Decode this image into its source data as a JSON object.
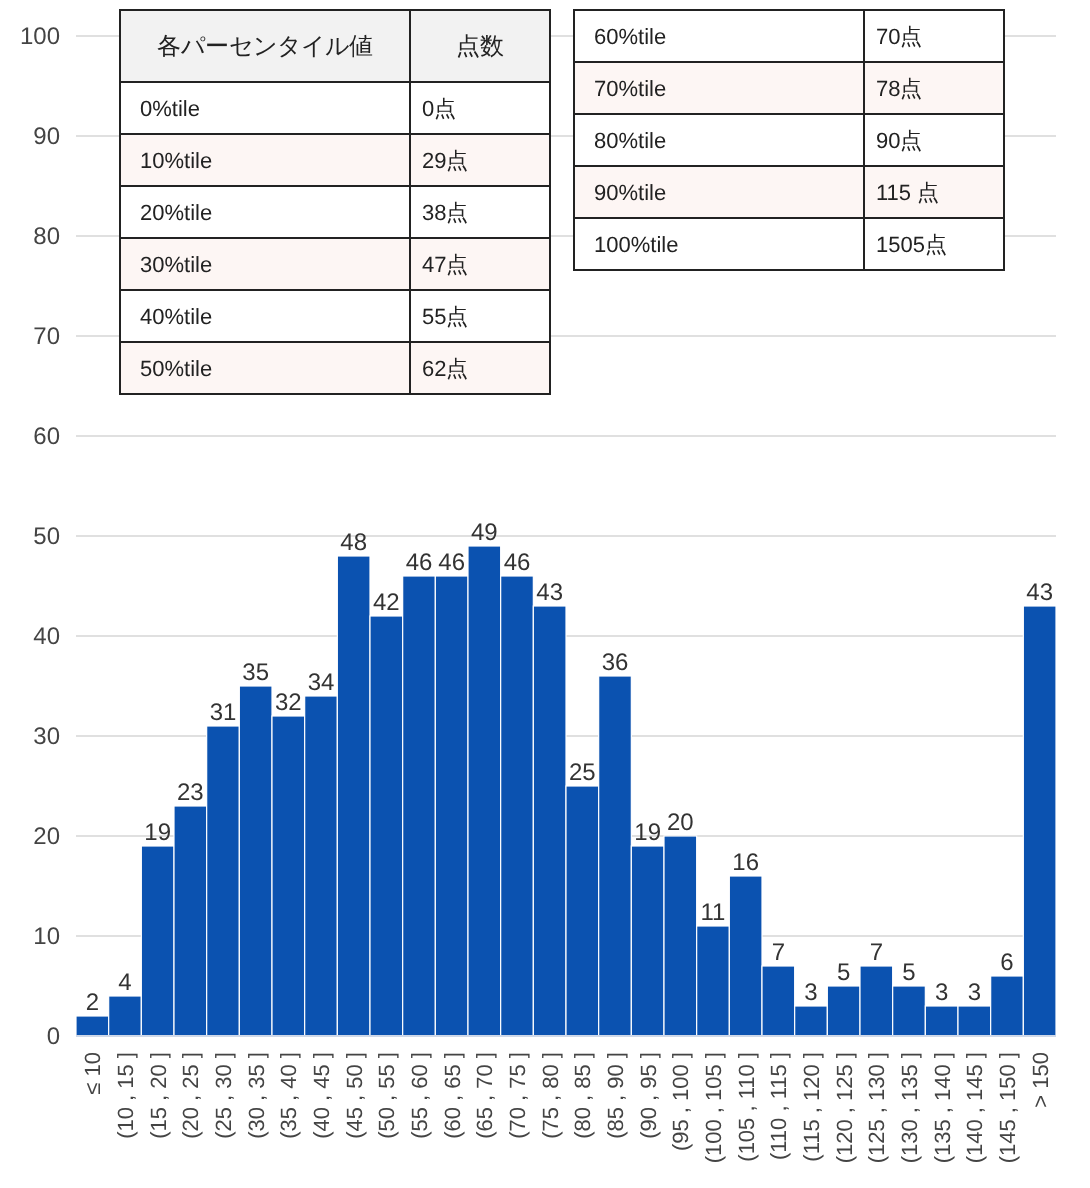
{
  "chart_data": {
    "type": "bar",
    "categories": [
      "≤ 10",
      "(10 , 15 ]",
      "(15 , 20 ]",
      "(20 , 25 ]",
      "(25 , 30 ]",
      "(30 , 35 ]",
      "(35 , 40 ]",
      "(40 , 45 ]",
      "(45 , 50 ]",
      "(50 , 55 ]",
      "(55 , 60 ]",
      "(60 , 65 ]",
      "(65 , 70 ]",
      "(70 , 75 ]",
      "(75 , 80 ]",
      "(80 , 85 ]",
      "(85 , 90 ]",
      "(90 , 95 ]",
      "(95 , 100 ]",
      "(100 , 105 ]",
      "(105 , 110 ]",
      "(110 , 115 ]",
      "(115 , 120 ]",
      "(120 , 125 ]",
      "(125 , 130 ]",
      "(130 , 135 ]",
      "(135 , 140 ]",
      "(140 , 145 ]",
      "(145 , 150 ]",
      "> 150"
    ],
    "values": [
      2,
      4,
      19,
      23,
      31,
      35,
      32,
      34,
      48,
      42,
      46,
      46,
      49,
      46,
      43,
      25,
      36,
      19,
      20,
      11,
      16,
      7,
      3,
      5,
      7,
      5,
      3,
      3,
      6,
      43
    ],
    "color": "#0b52b0",
    "ylim": [
      0,
      100
    ],
    "yticks": [
      0,
      10,
      20,
      30,
      40,
      50,
      60,
      70,
      80,
      90,
      100
    ],
    "grid": "y",
    "data_labels": true,
    "annotations": [
      "各パーセンタイル値",
      "点数",
      "0%tile",
      "0点",
      "10%tile",
      "29点",
      "20%tile",
      "38点",
      "30%tile",
      "47点",
      "40%tile",
      "55点",
      "50%tile",
      "62点",
      "60%tile",
      "70点",
      "70%tile",
      "78点",
      "80%tile",
      "90点",
      "90%tile",
      "115 点",
      "100%tile",
      "1505点"
    ]
  }
}
